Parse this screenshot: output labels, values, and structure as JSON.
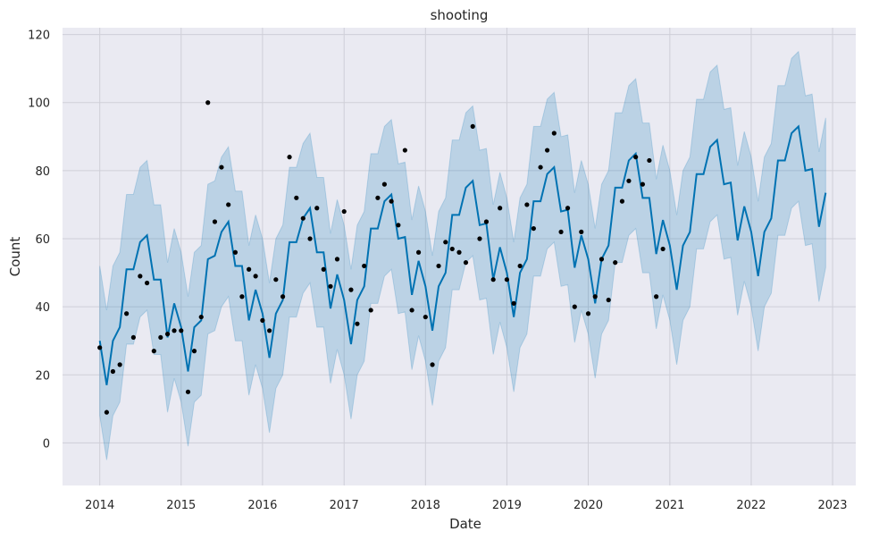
{
  "chart_data": {
    "type": "line",
    "title": "shooting",
    "xlabel": "Date",
    "ylabel": "Count",
    "xlim": [
      "2013-07-18",
      "2023-04-15"
    ],
    "ylim": [
      -12.5,
      122
    ],
    "grid": true,
    "x_ticks": [
      "2014",
      "2015",
      "2016",
      "2017",
      "2018",
      "2019",
      "2020",
      "2021",
      "2022",
      "2023"
    ],
    "y_ticks": [
      "0",
      "20",
      "40",
      "60",
      "80",
      "100",
      "120"
    ],
    "colors": {
      "background": "#eaeaf2",
      "grid": "#cfcfd8",
      "forecast_line": "#0072b2",
      "interval_fill": "#0072b2",
      "observed": "#000000"
    },
    "series": [
      {
        "name": "",
        "kind": "observed",
        "points": [
          [
            "2014-01",
            28
          ],
          [
            "2014-02",
            9
          ],
          [
            "2014-03",
            21
          ],
          [
            "2014-04",
            23
          ],
          [
            "2014-05",
            38
          ],
          [
            "2014-06",
            31
          ],
          [
            "2014-07",
            49
          ],
          [
            "2014-08",
            47
          ],
          [
            "2014-09",
            27
          ],
          [
            "2014-10",
            31
          ],
          [
            "2014-11",
            32
          ],
          [
            "2014-12",
            33
          ],
          [
            "2015-01",
            33
          ],
          [
            "2015-02",
            15
          ],
          [
            "2015-03",
            27
          ],
          [
            "2015-04",
            37
          ],
          [
            "2015-05",
            100
          ],
          [
            "2015-06",
            65
          ],
          [
            "2015-07",
            81
          ],
          [
            "2015-08",
            70
          ],
          [
            "2015-09",
            56
          ],
          [
            "2015-10",
            43
          ],
          [
            "2015-11",
            51
          ],
          [
            "2015-12",
            49
          ],
          [
            "2016-01",
            36
          ],
          [
            "2016-02",
            33
          ],
          [
            "2016-03",
            48
          ],
          [
            "2016-04",
            43
          ],
          [
            "2016-05",
            84
          ],
          [
            "2016-06",
            72
          ],
          [
            "2016-07",
            66
          ],
          [
            "2016-08",
            60
          ],
          [
            "2016-09",
            69
          ],
          [
            "2016-10",
            51
          ],
          [
            "2016-11",
            46
          ],
          [
            "2016-12",
            54
          ],
          [
            "2017-01",
            68
          ],
          [
            "2017-02",
            45
          ],
          [
            "2017-03",
            35
          ],
          [
            "2017-04",
            52
          ],
          [
            "2017-05",
            39
          ],
          [
            "2017-06",
            72
          ],
          [
            "2017-07",
            76
          ],
          [
            "2017-08",
            71
          ],
          [
            "2017-09",
            64
          ],
          [
            "2017-10",
            86
          ],
          [
            "2017-11",
            39
          ],
          [
            "2017-12",
            56
          ],
          [
            "2018-01",
            37
          ],
          [
            "2018-02",
            23
          ],
          [
            "2018-03",
            52
          ],
          [
            "2018-04",
            59
          ],
          [
            "2018-05",
            57
          ],
          [
            "2018-06",
            56
          ],
          [
            "2018-07",
            53
          ],
          [
            "2018-08",
            93
          ],
          [
            "2018-09",
            60
          ],
          [
            "2018-10",
            65
          ],
          [
            "2018-11",
            48
          ],
          [
            "2018-12",
            69
          ],
          [
            "2019-01",
            48
          ],
          [
            "2019-02",
            41
          ],
          [
            "2019-03",
            52
          ],
          [
            "2019-04",
            70
          ],
          [
            "2019-05",
            63
          ],
          [
            "2019-06",
            81
          ],
          [
            "2019-07",
            86
          ],
          [
            "2019-08",
            91
          ],
          [
            "2019-09",
            62
          ],
          [
            "2019-10",
            69
          ],
          [
            "2019-11",
            40
          ],
          [
            "2019-12",
            62
          ],
          [
            "2020-01",
            38
          ],
          [
            "2020-02",
            43
          ],
          [
            "2020-03",
            54
          ],
          [
            "2020-04",
            42
          ],
          [
            "2020-05",
            53
          ],
          [
            "2020-06",
            71
          ],
          [
            "2020-07",
            77
          ],
          [
            "2020-08",
            84
          ],
          [
            "2020-09",
            76
          ],
          [
            "2020-10",
            83
          ],
          [
            "2020-11",
            43
          ],
          [
            "2020-12",
            57
          ]
        ]
      },
      {
        "name": "",
        "kind": "forecast",
        "points": [
          [
            "2014-01",
            30
          ],
          [
            "2014-02",
            17
          ],
          [
            "2014-03",
            30
          ],
          [
            "2014-04",
            34
          ],
          [
            "2014-05",
            51
          ],
          [
            "2014-06",
            51
          ],
          [
            "2014-07",
            59
          ],
          [
            "2014-08",
            61
          ],
          [
            "2014-09",
            48
          ],
          [
            "2014-10",
            48
          ],
          [
            "2014-11",
            31
          ],
          [
            "2014-12",
            41
          ],
          [
            "2015-01",
            34
          ],
          [
            "2015-02",
            21
          ],
          [
            "2015-03",
            34
          ],
          [
            "2015-04",
            36
          ],
          [
            "2015-05",
            54
          ],
          [
            "2015-06",
            55
          ],
          [
            "2015-07",
            62
          ],
          [
            "2015-08",
            65
          ],
          [
            "2015-09",
            52
          ],
          [
            "2015-10",
            52
          ],
          [
            "2015-11",
            36
          ],
          [
            "2015-12",
            45
          ],
          [
            "2016-01",
            38
          ],
          [
            "2016-02",
            25
          ],
          [
            "2016-03",
            38
          ],
          [
            "2016-04",
            42
          ],
          [
            "2016-05",
            59
          ],
          [
            "2016-06",
            59
          ],
          [
            "2016-07",
            66
          ],
          [
            "2016-08",
            69
          ],
          [
            "2016-09",
            56
          ],
          [
            "2016-10",
            56
          ],
          [
            "2016-11",
            39.5
          ],
          [
            "2016-12",
            49.5
          ],
          [
            "2017-01",
            42
          ],
          [
            "2017-02",
            29
          ],
          [
            "2017-03",
            42
          ],
          [
            "2017-04",
            46
          ],
          [
            "2017-05",
            63
          ],
          [
            "2017-06",
            63
          ],
          [
            "2017-07",
            71
          ],
          [
            "2017-08",
            73
          ],
          [
            "2017-09",
            60
          ],
          [
            "2017-10",
            60.5
          ],
          [
            "2017-11",
            43.5
          ],
          [
            "2017-12",
            53.5
          ]
        ]
      }
    ],
    "forecast": {
      "x_start": "2014-01",
      "step_months": 1,
      "values": [
        30,
        17,
        30,
        34,
        51,
        51,
        59,
        61,
        48,
        48,
        31,
        41,
        34,
        21,
        34,
        36,
        54,
        55,
        62,
        65,
        52,
        52,
        36,
        45,
        38,
        25,
        38,
        42,
        59,
        59,
        66,
        69,
        56,
        56,
        39.5,
        49.5,
        42,
        29,
        42,
        46,
        63,
        63,
        71,
        73,
        60,
        60.5,
        43.5,
        53.5,
        46,
        33,
        46,
        50,
        67,
        67,
        75,
        77,
        64,
        64.5,
        48,
        57.5,
        50,
        37,
        50,
        54,
        71,
        71,
        79,
        81,
        68,
        68.5,
        51.5,
        61,
        54,
        41,
        54,
        58,
        75,
        75,
        83,
        85,
        72,
        72,
        55.5,
        65.5,
        58,
        45,
        58,
        62,
        79,
        79,
        87,
        89,
        76,
        76.5,
        59.5,
        69.5,
        62,
        49,
        62,
        66,
        83,
        83,
        91,
        93,
        80,
        80.5,
        63.5,
        73.5
      ],
      "interval_halfwidth": 22
    }
  }
}
